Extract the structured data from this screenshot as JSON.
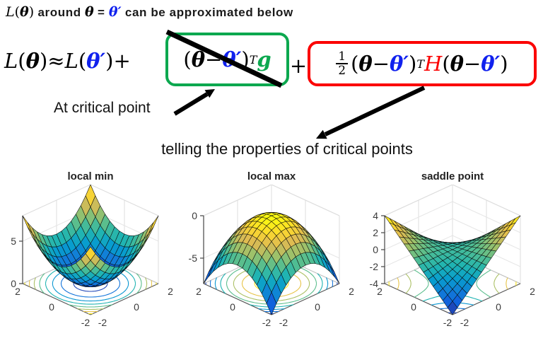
{
  "header": {
    "segments": [
      {
        "t": "L",
        "k": "hi"
      },
      {
        "t": "(",
        "k": "hu"
      },
      {
        "t": "θ",
        "k": "hb"
      },
      {
        "t": ")",
        "k": "hu"
      },
      {
        "t": " around ",
        "k": "hs"
      },
      {
        "t": "θ",
        "k": "hb"
      },
      {
        "t": " = ",
        "k": "hs"
      },
      {
        "t": "θ′",
        "k": "hbp"
      },
      {
        "t": " can be approximated below",
        "k": "hs"
      }
    ]
  },
  "equation": {
    "lead_segments": [
      {
        "t": "L",
        "k": "i"
      },
      {
        "t": "(",
        "k": "u"
      },
      {
        "t": "θ",
        "k": "bi"
      },
      {
        "t": ")",
        "k": "u"
      },
      {
        "t": " ≈ ",
        "k": "u"
      },
      {
        "t": "L",
        "k": "i"
      },
      {
        "t": "(",
        "k": "u"
      },
      {
        "t": "θ′",
        "k": "bib"
      },
      {
        "t": ")",
        "k": "u"
      },
      {
        "t": " + ",
        "k": "u"
      }
    ],
    "green_box_segments": [
      {
        "t": "(",
        "k": "u"
      },
      {
        "t": "θ",
        "k": "bi"
      },
      {
        "t": " − ",
        "k": "u"
      },
      {
        "t": "θ′",
        "k": "bib"
      },
      {
        "t": ")",
        "k": "u"
      },
      {
        "t": "T",
        "k": "sup"
      },
      {
        "t": " ",
        "k": "u"
      },
      {
        "t": "g",
        "k": "g"
      }
    ],
    "plus": "+",
    "red_box_segments": [
      {
        "k": "frac",
        "num": "1",
        "den": "2"
      },
      {
        "t": "(",
        "k": "u"
      },
      {
        "t": "θ",
        "k": "bi"
      },
      {
        "t": " − ",
        "k": "u"
      },
      {
        "t": "θ′",
        "k": "bib"
      },
      {
        "t": ")",
        "k": "u"
      },
      {
        "t": "T",
        "k": "sup"
      },
      {
        "t": "H",
        "k": "ri"
      },
      {
        "t": "(",
        "k": "u"
      },
      {
        "t": "θ",
        "k": "bi"
      },
      {
        "t": " − ",
        "k": "u"
      },
      {
        "t": "θ′",
        "k": "bib"
      },
      {
        "t": ")",
        "k": "u"
      }
    ],
    "colors": {
      "theta_prime_blue": "#1021ee",
      "gradient_green": "#0ca84f",
      "hessian_red": "#fb0000",
      "green_box": "#0ca84f",
      "red_box": "#fb0000"
    }
  },
  "annotations": {
    "at_critical_point": "At critical point",
    "telling": "telling the properties of critical points"
  },
  "chart_data": [
    {
      "type": "surface",
      "title": "local min",
      "function": "z = x^2 + y^2",
      "fn_key": "bowl",
      "x_range": [
        -2,
        2
      ],
      "y_range": [
        -2,
        2
      ],
      "z_range": [
        0,
        8
      ],
      "x_ticks": [
        -2,
        0,
        2
      ],
      "y_ticks": [
        -2,
        0,
        2
      ],
      "z_ticks": [
        0,
        5
      ],
      "contour_levels": [
        0.5,
        1.5,
        2.5,
        3.5,
        4.5,
        5.5,
        6.5,
        7.5
      ],
      "colormap": "parula",
      "mesh_n": 14,
      "floor_contours": true
    },
    {
      "type": "surface",
      "title": "local max",
      "function": "z = -(x^2 + y^2)",
      "fn_key": "dome",
      "x_range": [
        -2,
        2
      ],
      "y_range": [
        -2,
        2
      ],
      "z_range": [
        -8,
        0
      ],
      "x_ticks": [
        -2,
        0,
        2
      ],
      "y_ticks": [
        -2,
        0,
        2
      ],
      "z_ticks": [
        -5,
        0
      ],
      "contour_levels": [
        -7.5,
        -6.5,
        -5.5,
        -4.5,
        -3.5,
        -2.5,
        -1.5,
        -0.5
      ],
      "colormap": "parula",
      "mesh_n": 14,
      "floor_contours": true
    },
    {
      "type": "surface",
      "title": "saddle point",
      "function": "z = -x*y",
      "fn_key": "saddle",
      "x_range": [
        -2,
        2
      ],
      "y_range": [
        -2,
        2
      ],
      "z_range": [
        -4,
        4
      ],
      "x_ticks": [
        -2,
        0,
        2
      ],
      "y_ticks": [
        -2,
        0,
        2
      ],
      "z_ticks": [
        -4,
        -2,
        0,
        2,
        4
      ],
      "contour_levels": [
        -3.5,
        -2.5,
        -1.5,
        -0.5,
        0.5,
        1.5,
        2.5,
        3.5
      ],
      "colormap": "parula",
      "mesh_n": 14,
      "floor_contours": true
    }
  ]
}
